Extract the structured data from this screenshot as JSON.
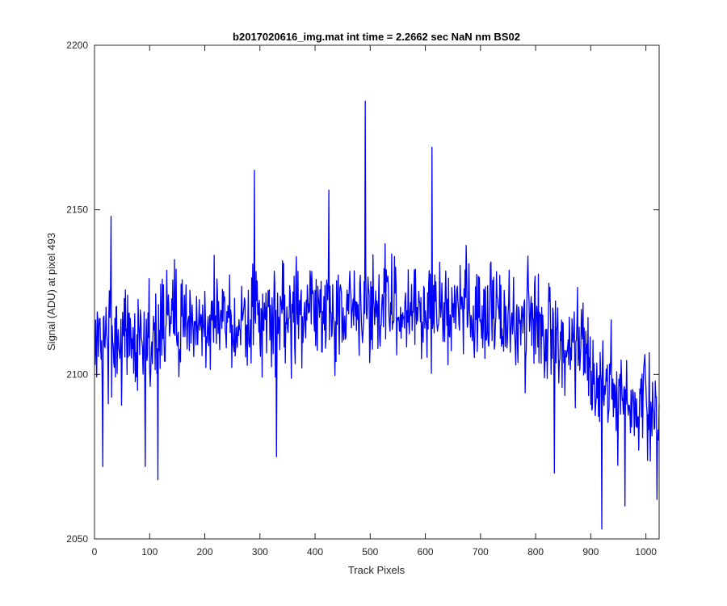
{
  "chart_data": {
    "type": "line",
    "title": "b2017020616_img.mat int time = 2.2662 sec  NaN nm BS02",
    "xlabel": "Track Pixels",
    "ylabel": "Signal (ADU) at pixel 493",
    "xlim": [
      0,
      1024
    ],
    "ylim": [
      2050,
      2200
    ],
    "xticks": [
      0,
      100,
      200,
      300,
      400,
      500,
      600,
      700,
      800,
      900,
      1000
    ],
    "yticks": [
      2050,
      2100,
      2150,
      2200
    ],
    "grid": false,
    "box": true,
    "series_color": "#0000ff",
    "series": [
      {
        "x_start": 1,
        "x_step": 1,
        "noise_amplitude": 13,
        "baseline_points": [
          [
            1,
            2110
          ],
          [
            100,
            2112
          ],
          [
            200,
            2116
          ],
          [
            300,
            2117
          ],
          [
            400,
            2119
          ],
          [
            500,
            2120
          ],
          [
            600,
            2120
          ],
          [
            700,
            2119
          ],
          [
            800,
            2114
          ],
          [
            880,
            2107
          ],
          [
            920,
            2096
          ],
          [
            1000,
            2090
          ],
          [
            1024,
            2090
          ]
        ],
        "extremes": [
          [
            15,
            2072
          ],
          [
            30,
            2148
          ],
          [
            92,
            2072
          ],
          [
            115,
            2068
          ],
          [
            290,
            2162
          ],
          [
            330,
            2075
          ],
          [
            425,
            2156
          ],
          [
            491,
            2183
          ],
          [
            612,
            2169
          ],
          [
            834,
            2070
          ],
          [
            920,
            2053
          ],
          [
            962,
            2060
          ],
          [
            1020,
            2062
          ]
        ]
      }
    ]
  }
}
